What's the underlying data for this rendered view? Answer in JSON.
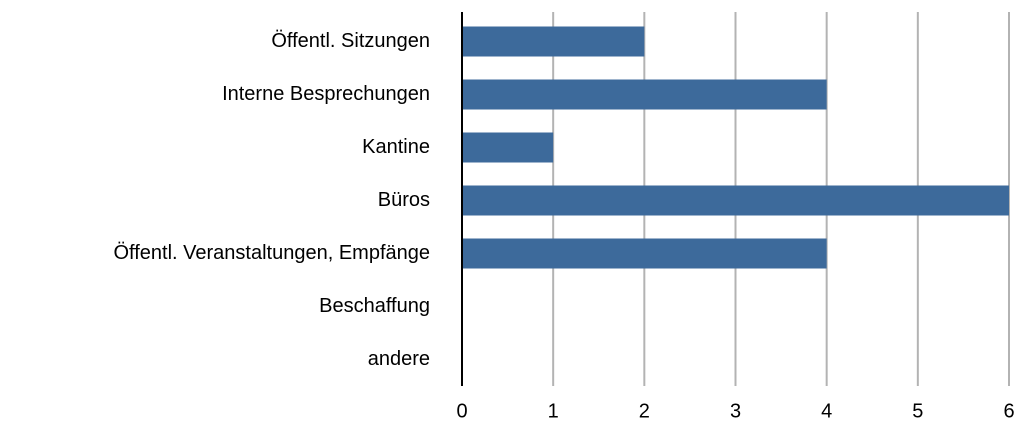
{
  "chart_data": {
    "type": "barh",
    "categories": [
      "Öffentl. Sitzungen",
      "Interne Besprechungen",
      "Kantine",
      "Büros",
      "Öffentl. Veranstaltungen, Empfänge",
      "Beschaffung",
      "andere"
    ],
    "values": [
      2,
      4,
      1,
      6,
      4,
      0,
      0
    ],
    "color": "#3d6a9b",
    "xlim": [
      0,
      6
    ],
    "xticks": [
      0,
      1,
      2,
      3,
      4,
      5,
      6
    ],
    "grid": true
  }
}
